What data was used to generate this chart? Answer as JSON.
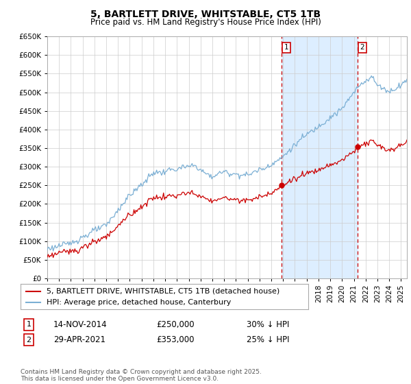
{
  "title": "5, BARTLETT DRIVE, WHITSTABLE, CT5 1TB",
  "subtitle": "Price paid vs. HM Land Registry's House Price Index (HPI)",
  "legend_line1": "5, BARTLETT DRIVE, WHITSTABLE, CT5 1TB (detached house)",
  "legend_line2": "HPI: Average price, detached house, Canterbury",
  "footer": "Contains HM Land Registry data © Crown copyright and database right 2025.\nThis data is licensed under the Open Government Licence v3.0.",
  "ann1_label": "1",
  "ann1_date": "14-NOV-2014",
  "ann1_price": "£250,000",
  "ann1_hpi": "30% ↓ HPI",
  "ann1_year": 2014.87,
  "ann1_value": 250000,
  "ann2_label": "2",
  "ann2_date": "29-APR-2021",
  "ann2_price": "£353,000",
  "ann2_hpi": "25% ↓ HPI",
  "ann2_year": 2021.33,
  "ann2_value": 353000,
  "ylim": [
    0,
    650000
  ],
  "xlim_start": 1995,
  "xlim_end": 2025.5,
  "red_color": "#cc0000",
  "blue_color": "#7bafd4",
  "shade_color": "#ddeeff",
  "grid_color": "#cccccc",
  "background_color": "#ffffff",
  "title_fontsize": 10,
  "subtitle_fontsize": 8.5,
  "axis_fontsize": 7.5,
  "legend_fontsize": 8
}
